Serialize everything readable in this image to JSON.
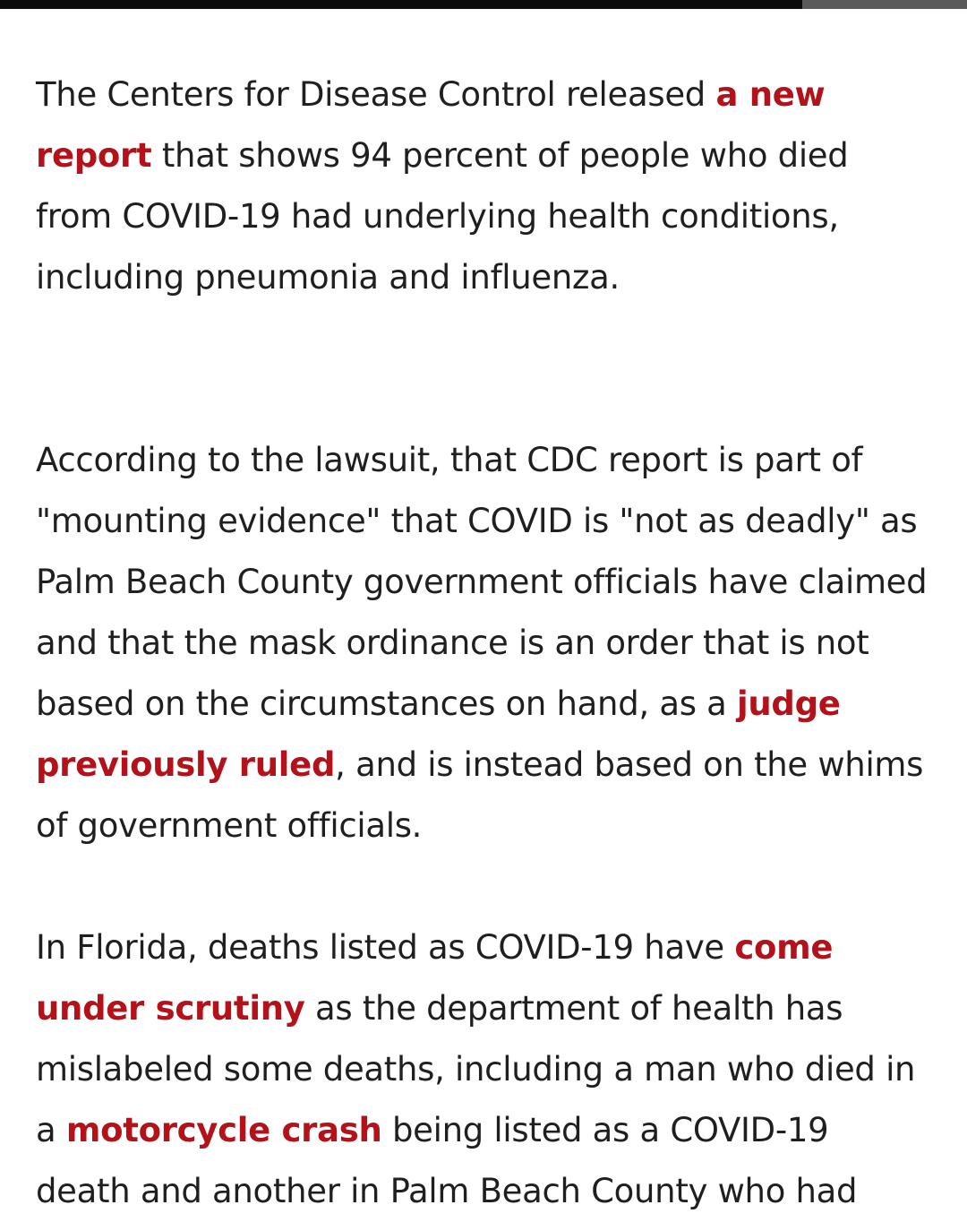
{
  "reading_progress": {
    "fraction": 0.83
  },
  "accent_color": "#b3121b",
  "article": {
    "paragraphs": [
      {
        "t1": "The Centers for Disease Control released ",
        "link1": "a new report",
        "t2": " that shows 94 percent of people who died from COVID-19 had underlying health conditions, including pneumonia and influenza."
      },
      {
        "t1": "According to the lawsuit, that CDC report is part of \"mounting evidence\" that COVID is \"not as deadly\" as Palm Beach County government officials have claimed and that the mask ordinance is an order that is not based on the circumstances on hand, as a ",
        "link1": "judge previously ruled",
        "t2": ", and is instead based on the whims of government officials."
      },
      {
        "t1": "In Florida, deaths listed as COVID-19 have ",
        "link1": "come under scrutiny",
        "t2": " as the department of health has mislabeled some deaths, including a man who died in a ",
        "link2": "motorcycle crash",
        "t3": " being listed as a COVID-19 death and another in Palm Beach County who had"
      }
    ]
  }
}
